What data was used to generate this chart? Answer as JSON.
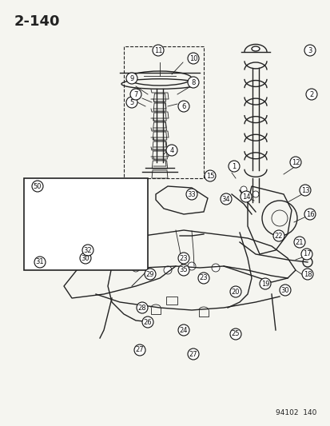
{
  "page_number": "2-140",
  "figure_code": "94102  140",
  "background_color": "#f5f5f0",
  "diagram_bg": "#f5f5f0",
  "line_color": "#222222",
  "callout_color": "#111111",
  "title_fontsize": 13,
  "callout_fontsize": 7.5,
  "fig_width": 4.14,
  "fig_height": 5.33
}
